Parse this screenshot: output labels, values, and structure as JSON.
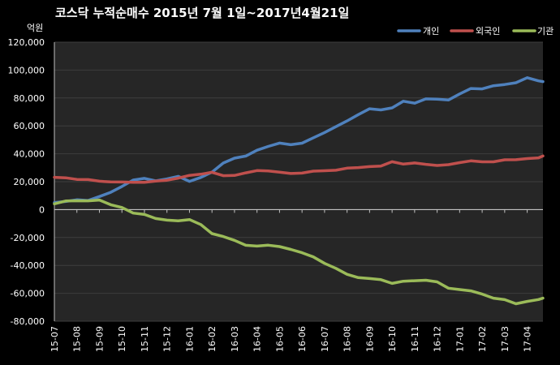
{
  "chart_data": {
    "type": "line",
    "title": "코스닥 누적순매수 2015년 7월 1일~2017년4월21일",
    "ylabel": "억원",
    "ylim": [
      -80000,
      120000
    ],
    "yticks": [
      -80000,
      -60000,
      -40000,
      -20000,
      0,
      20000,
      40000,
      60000,
      80000,
      100000,
      120000
    ],
    "ytick_labels": [
      "-80,000",
      "-60,000",
      "-40,000",
      "-20,000",
      "0",
      "20,000",
      "40,000",
      "60,000",
      "80,000",
      "100,000",
      "120,000"
    ],
    "categories": [
      "15-07",
      "15-08",
      "15-09",
      "15-10",
      "15-11",
      "15-12",
      "16-01",
      "16-02",
      "16-03",
      "16-04",
      "16-05",
      "16-06",
      "16-07",
      "16-08",
      "16-09",
      "16-10",
      "16-11",
      "16-12",
      "17-01",
      "17-02",
      "17-03",
      "17-04"
    ],
    "x_range": [
      0,
      21.7
    ],
    "grid": true,
    "legend_position": "top-right",
    "background": "#000000",
    "plot_background": "#262626",
    "series": [
      {
        "name": "개인",
        "color": "#4f81bd",
        "x": [
          0,
          0.5,
          1,
          1.5,
          2,
          2.5,
          3,
          3.5,
          4,
          4.5,
          5,
          5.5,
          6,
          6.5,
          7,
          7.5,
          8,
          8.5,
          9,
          9.5,
          10,
          10.5,
          11,
          11.5,
          12,
          12.5,
          13,
          13.5,
          14,
          14.5,
          15,
          15.5,
          16,
          16.5,
          17,
          17.5,
          18,
          18.5,
          19,
          19.5,
          20,
          20.5,
          21,
          21.5,
          21.7
        ],
        "values": [
          5000,
          5000,
          7000,
          6000,
          9000,
          12000,
          16000,
          21000,
          23000,
          21000,
          22000,
          24000,
          21000,
          23000,
          27000,
          33000,
          36000,
          38000,
          42000,
          45000,
          47000,
          46000,
          47000,
          52000,
          56000,
          60000,
          64000,
          69000,
          73000,
          72000,
          72000,
          77000,
          76000,
          79000,
          79000,
          78000,
          82000,
          86000,
          87000,
          89000,
          90000,
          91000,
          95000,
          93000,
          92000
        ]
      },
      {
        "name": "외국인",
        "color": "#c0504d",
        "x": [
          0,
          0.5,
          1,
          1.5,
          2,
          2.5,
          3,
          3.5,
          4,
          4.5,
          5,
          5.5,
          6,
          6.5,
          7,
          7.5,
          8,
          8.5,
          9,
          9.5,
          10,
          10.5,
          11,
          11.5,
          12,
          12.5,
          13,
          13.5,
          14,
          14.5,
          15,
          15.5,
          16,
          16.5,
          17,
          17.5,
          18,
          18.5,
          19,
          19.5,
          20,
          20.5,
          21,
          21.5,
          21.7
        ],
        "values": [
          23000,
          23000,
          22000,
          22000,
          21000,
          20000,
          20000,
          20000,
          20000,
          20000,
          21000,
          22000,
          24000,
          25000,
          26000,
          24000,
          25000,
          27000,
          28000,
          28000,
          27000,
          26000,
          27000,
          27000,
          27000,
          28000,
          29000,
          30000,
          30000,
          31000,
          34000,
          33000,
          34000,
          33000,
          32000,
          33000,
          34000,
          35000,
          34000,
          34000,
          35000,
          35000,
          36000,
          37000,
          38000
        ]
      },
      {
        "name": "기관",
        "color": "#9bbb59",
        "x": [
          0,
          0.5,
          1,
          1.5,
          2,
          2.5,
          3,
          3.5,
          4,
          4.5,
          5,
          5.5,
          6,
          6.5,
          7,
          7.5,
          8,
          8.5,
          9,
          9.5,
          10,
          10.5,
          11,
          11.5,
          12,
          12.5,
          13,
          13.5,
          14,
          14.5,
          15,
          15.5,
          16,
          16.5,
          17,
          17.5,
          18,
          18.5,
          19,
          19.5,
          20,
          20.5,
          21,
          21.5,
          21.7
        ],
        "values": [
          5000,
          7000,
          6000,
          6000,
          6000,
          3000,
          1000,
          -3000,
          -4000,
          -6000,
          -7000,
          -8000,
          -7000,
          -10000,
          -17000,
          -19000,
          -22000,
          -26000,
          -27000,
          -26000,
          -27000,
          -29000,
          -31000,
          -34000,
          -38000,
          -42000,
          -46000,
          -48000,
          -49000,
          -50000,
          -52000,
          -51000,
          -51000,
          -51000,
          -52000,
          -57000,
          -58000,
          -59000,
          -61000,
          -63000,
          -64000,
          -67000,
          -65000,
          -64000,
          -63000
        ]
      }
    ]
  }
}
